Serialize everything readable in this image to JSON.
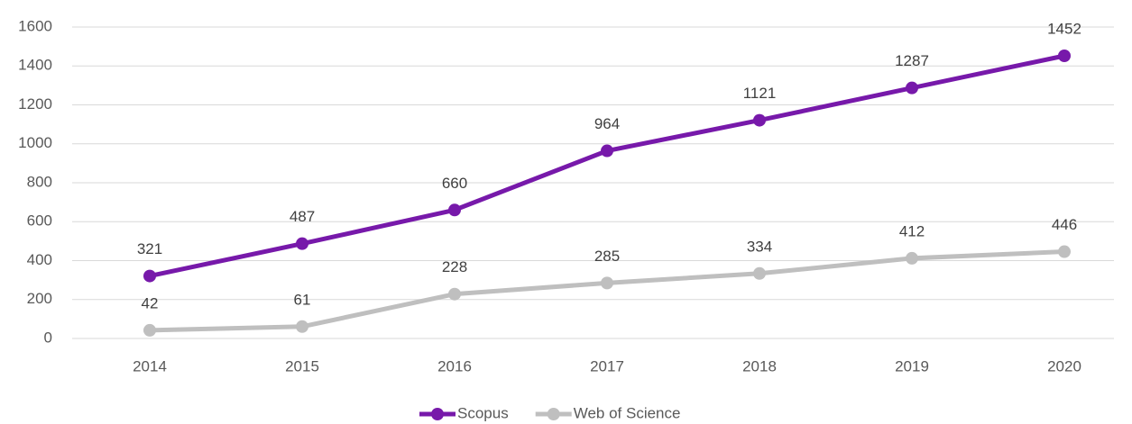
{
  "chart_data": {
    "type": "line",
    "categories": [
      "2014",
      "2015",
      "2016",
      "2017",
      "2018",
      "2019",
      "2020"
    ],
    "series": [
      {
        "name": "Scopus",
        "color": "#7719aa",
        "values": [
          321,
          487,
          660,
          964,
          1121,
          1287,
          1452
        ]
      },
      {
        "name": "Web of Science",
        "color": "#bfbfbf",
        "values": [
          42,
          61,
          228,
          285,
          334,
          412,
          446
        ]
      }
    ],
    "ylim": [
      0,
      1600
    ],
    "yticks": [
      0,
      200,
      400,
      600,
      800,
      1000,
      1200,
      1400,
      1600
    ],
    "grid": true,
    "legend": "bottom"
  }
}
